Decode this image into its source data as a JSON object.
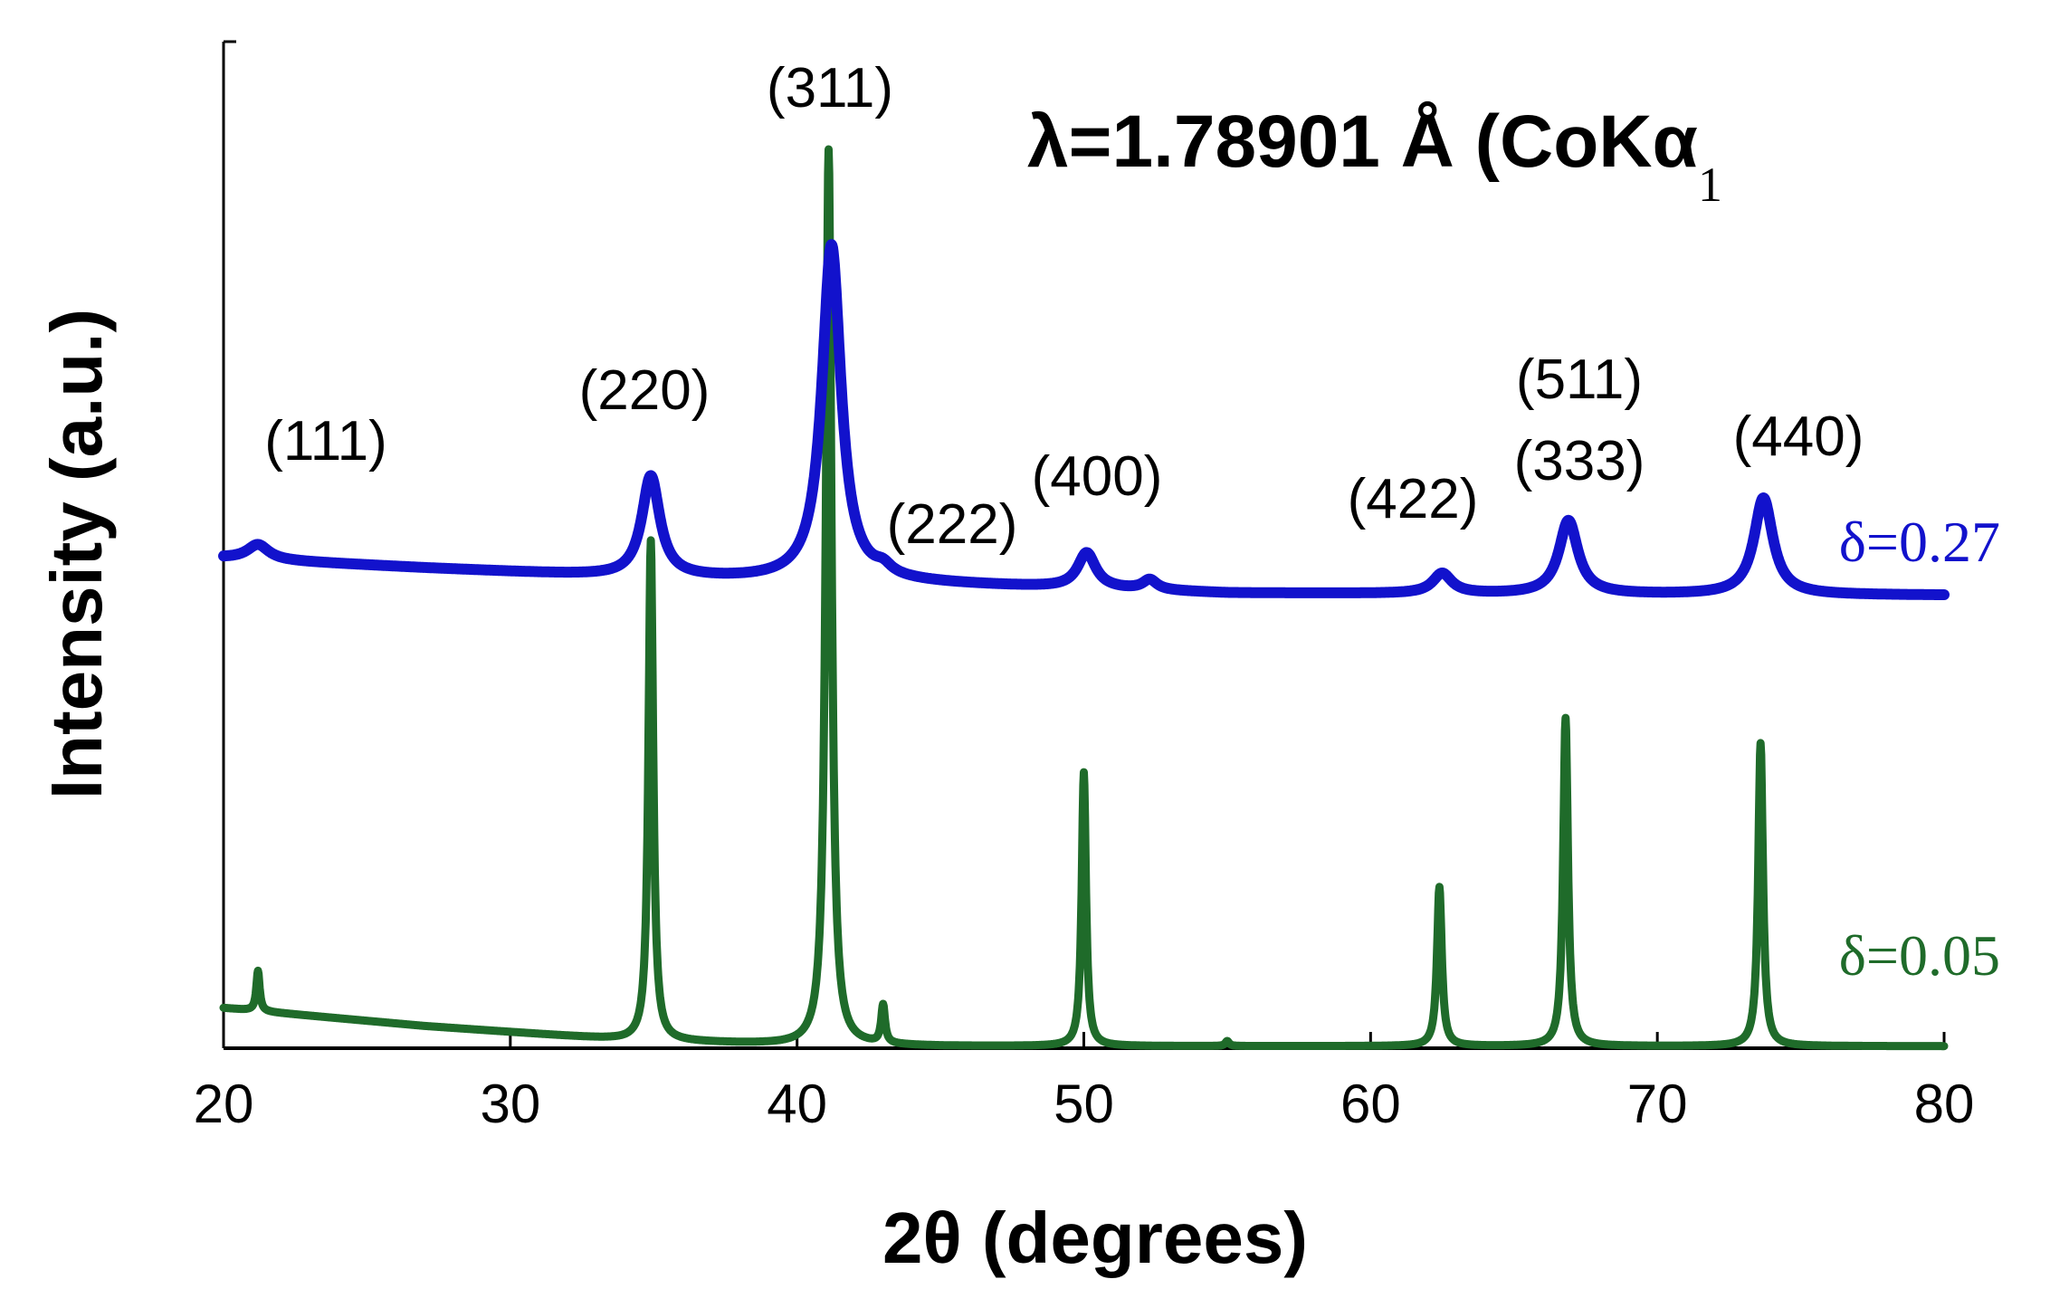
{
  "chart_data": {
    "type": "line",
    "xlabel": "2θ (degrees)",
    "ylabel": "Intensity (a.u.)",
    "xlim": [
      20,
      80
    ],
    "ylim": [
      0,
      1.0
    ],
    "x_ticks": [
      "20",
      "30",
      "40",
      "50",
      "60",
      "70",
      "80"
    ],
    "grid": false,
    "legend": "none",
    "wavelength_label": {
      "prefix": "λ=1.78901 Å (CoKα",
      "subscript": "1"
    },
    "colors": {
      "blue": "#1212cc",
      "green": "#1f6b2a",
      "axis": "#000000"
    },
    "peak_labels": [
      {
        "text": "(111)",
        "x": 21.2
      },
      {
        "text": "(220)",
        "x": 34.9
      },
      {
        "text": "(311)",
        "x": 41.2
      },
      {
        "text": "(222)",
        "x": 43.0
      },
      {
        "text": "(400)",
        "x": 50.1
      },
      {
        "text": "(422)",
        "x": 62.5
      },
      {
        "text": "(511)",
        "x": 66.8
      },
      {
        "text": "(333)",
        "x": 66.8
      },
      {
        "text": "(440)",
        "x": 73.7
      }
    ],
    "series": [
      {
        "name": "δ=0.27",
        "color": "#1212cc",
        "baseline": [
          [
            20,
            0.487
          ],
          [
            27,
            0.477
          ],
          [
            34,
            0.468
          ],
          [
            44,
            0.462
          ],
          [
            55,
            0.452
          ],
          [
            65,
            0.451
          ],
          [
            80,
            0.45
          ]
        ],
        "peaks": [
          {
            "x": 21.2,
            "height": 0.015,
            "width": 0.45
          },
          {
            "x": 34.9,
            "height": 0.1,
            "width": 0.38
          },
          {
            "x": 41.2,
            "height": 0.334,
            "width": 0.4
          },
          {
            "x": 43.0,
            "height": 0.008,
            "width": 0.35
          },
          {
            "x": 50.1,
            "height": 0.035,
            "width": 0.38
          },
          {
            "x": 52.3,
            "height": 0.01,
            "width": 0.3
          },
          {
            "x": 62.5,
            "height": 0.02,
            "width": 0.4
          },
          {
            "x": 66.9,
            "height": 0.073,
            "width": 0.4
          },
          {
            "x": 73.7,
            "height": 0.096,
            "width": 0.4
          }
        ]
      },
      {
        "name": "δ=0.05",
        "color": "#1f6b2a",
        "baseline": [
          [
            20,
            0.04
          ],
          [
            27,
            0.022
          ],
          [
            34,
            0.008
          ],
          [
            40,
            0.003
          ],
          [
            45,
            0.002
          ],
          [
            60,
            0.002
          ],
          [
            80,
            0.002
          ]
        ],
        "peaks": [
          {
            "x": 21.2,
            "height": 0.04,
            "width": 0.07
          },
          {
            "x": 34.9,
            "height": 0.497,
            "width": 0.1
          },
          {
            "x": 41.1,
            "height": 0.89,
            "width": 0.12
          },
          {
            "x": 43.0,
            "height": 0.038,
            "width": 0.08
          },
          {
            "x": 50.0,
            "height": 0.272,
            "width": 0.09
          },
          {
            "x": 55.0,
            "height": 0.005,
            "width": 0.08
          },
          {
            "x": 62.4,
            "height": 0.158,
            "width": 0.1
          },
          {
            "x": 66.8,
            "height": 0.326,
            "width": 0.1
          },
          {
            "x": 73.6,
            "height": 0.301,
            "width": 0.1
          }
        ]
      }
    ]
  }
}
